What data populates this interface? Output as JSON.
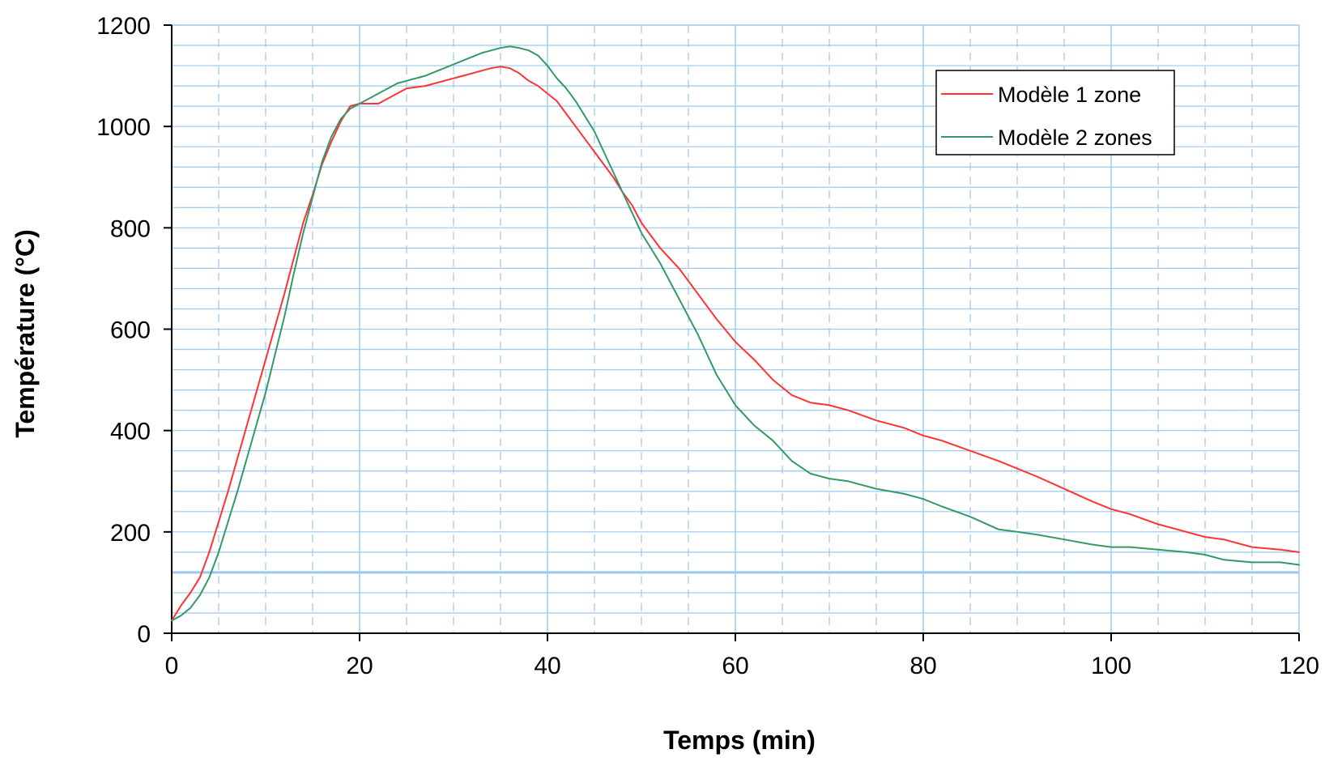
{
  "chart_data": {
    "type": "line",
    "title": "",
    "xlabel": "Temps (min)",
    "ylabel": "Température (°C)",
    "xlim": [
      0,
      120
    ],
    "ylim": [
      0,
      1200
    ],
    "xticks": [
      0,
      20,
      40,
      60,
      80,
      100,
      120
    ],
    "yticks": [
      0,
      200,
      400,
      600,
      800,
      1000,
      1200
    ],
    "x_minor_step": 5,
    "y_minor_step": 40,
    "grid": true,
    "grid_color": "#99c9f0",
    "reference_line_y": 120,
    "legend_position": "top-right",
    "series": [
      {
        "name": "Modèle 1 zone",
        "color": "#ff3333",
        "x": [
          0,
          1,
          2,
          3,
          4,
          5,
          6,
          7,
          8,
          9,
          10,
          11,
          12,
          13,
          14,
          15,
          16,
          17,
          18,
          19,
          20,
          21,
          22,
          23,
          24,
          25,
          27,
          29,
          31,
          33,
          34,
          35,
          36,
          37,
          38,
          39,
          40,
          41,
          42,
          43,
          44,
          45,
          46,
          47,
          48,
          49,
          50,
          52,
          54,
          56,
          58,
          60,
          62,
          64,
          66,
          68,
          70,
          72,
          75,
          78,
          80,
          82,
          85,
          88,
          90,
          92,
          95,
          98,
          100,
          102,
          105,
          108,
          110,
          112,
          115,
          118,
          120
        ],
        "values": [
          25,
          55,
          80,
          110,
          160,
          220,
          280,
          345,
          410,
          475,
          540,
          605,
          670,
          740,
          810,
          865,
          925,
          970,
          1010,
          1040,
          1045,
          1045,
          1045,
          1055,
          1065,
          1075,
          1080,
          1090,
          1100,
          1110,
          1115,
          1118,
          1115,
          1105,
          1090,
          1080,
          1065,
          1050,
          1025,
          1000,
          975,
          950,
          925,
          900,
          870,
          845,
          810,
          760,
          720,
          670,
          620,
          575,
          540,
          500,
          470,
          455,
          450,
          440,
          420,
          405,
          390,
          380,
          360,
          340,
          325,
          310,
          285,
          260,
          245,
          235,
          215,
          200,
          190,
          185,
          170,
          165,
          160
        ]
      },
      {
        "name": "Modèle 2 zones",
        "color": "#339966",
        "x": [
          0,
          1,
          2,
          3,
          4,
          5,
          6,
          7,
          8,
          9,
          10,
          11,
          12,
          13,
          14,
          15,
          16,
          17,
          18,
          19,
          20,
          21,
          22,
          23,
          24,
          25,
          27,
          29,
          31,
          33,
          34,
          35,
          36,
          37,
          38,
          39,
          40,
          41,
          42,
          43,
          44,
          45,
          46,
          47,
          48,
          49,
          50,
          52,
          54,
          56,
          58,
          60,
          62,
          64,
          66,
          68,
          70,
          72,
          75,
          78,
          80,
          82,
          85,
          88,
          90,
          92,
          95,
          98,
          100,
          102,
          105,
          108,
          110,
          112,
          115,
          118,
          120
        ],
        "values": [
          25,
          35,
          50,
          75,
          110,
          160,
          220,
          280,
          345,
          410,
          475,
          550,
          625,
          710,
          790,
          860,
          930,
          980,
          1015,
          1035,
          1045,
          1055,
          1065,
          1075,
          1085,
          1090,
          1100,
          1115,
          1130,
          1145,
          1150,
          1155,
          1158,
          1155,
          1150,
          1140,
          1120,
          1095,
          1075,
          1050,
          1020,
          990,
          950,
          910,
          870,
          830,
          790,
          730,
          660,
          590,
          510,
          450,
          410,
          380,
          340,
          315,
          305,
          300,
          285,
          275,
          265,
          250,
          230,
          205,
          200,
          195,
          185,
          175,
          170,
          170,
          165,
          160,
          155,
          145,
          140,
          140,
          135
        ]
      }
    ]
  }
}
